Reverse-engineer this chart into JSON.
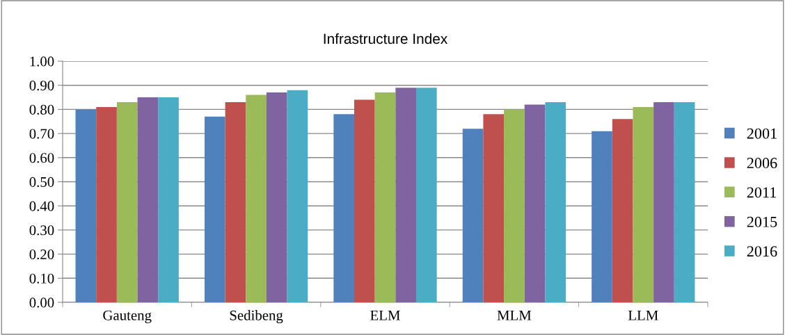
{
  "chart_data": {
    "type": "bar",
    "title": "Infrastructure Index",
    "categories": [
      "Gauteng",
      "Sedibeng",
      "ELM",
      "MLM",
      "LLM"
    ],
    "series": [
      {
        "name": "2001",
        "color": "#4f81bd",
        "values": [
          0.8,
          0.77,
          0.78,
          0.72,
          0.71
        ]
      },
      {
        "name": "2006",
        "color": "#c0504d",
        "values": [
          0.81,
          0.83,
          0.84,
          0.78,
          0.76
        ]
      },
      {
        "name": "2011",
        "color": "#9bbb59",
        "values": [
          0.83,
          0.86,
          0.87,
          0.8,
          0.81
        ]
      },
      {
        "name": "2015",
        "color": "#8064a2",
        "values": [
          0.85,
          0.87,
          0.89,
          0.82,
          0.83
        ]
      },
      {
        "name": "2016",
        "color": "#4bacc6",
        "values": [
          0.85,
          0.88,
          0.89,
          0.83,
          0.83
        ]
      }
    ],
    "ylim": [
      0,
      1
    ],
    "yticks": [
      {
        "value": 0,
        "label": "0.00"
      },
      {
        "value": 0.1,
        "label": "0.10"
      },
      {
        "value": 0.2,
        "label": "0.20"
      },
      {
        "value": 0.3,
        "label": "0.30"
      },
      {
        "value": 0.4,
        "label": "0.40"
      },
      {
        "value": 0.5,
        "label": "0.50"
      },
      {
        "value": 0.6,
        "label": "0.60"
      },
      {
        "value": 0.7,
        "label": "0.70"
      },
      {
        "value": 0.8,
        "label": "0.80"
      },
      {
        "value": 0.9,
        "label": "0.90"
      },
      {
        "value": 1,
        "label": "1.00"
      }
    ],
    "grid": "y",
    "legend": "right"
  }
}
